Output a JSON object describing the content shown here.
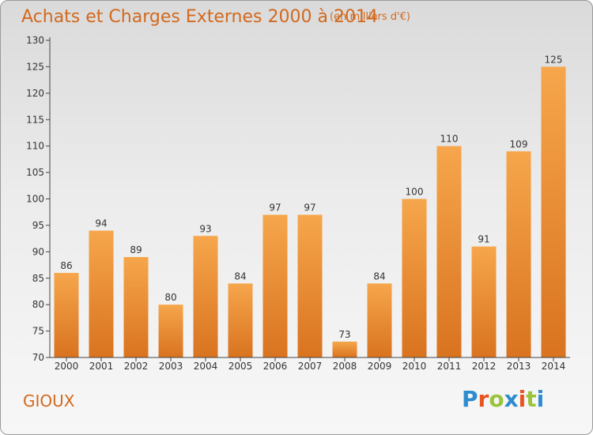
{
  "header": {
    "title": "Achats et Charges Externes 2000 à 2014",
    "units": "(en milliers d'€)"
  },
  "footer": {
    "commune": "GIOUX",
    "logo_text": "Proxiti",
    "logo_colors": [
      "#2e8bd0",
      "#e8531f",
      "#9ac43a",
      "#2e8bd0",
      "#e8531f",
      "#9ac43a",
      "#2e8bd0"
    ]
  },
  "colors": {
    "bar_light": "#f6a64c",
    "bar_dark": "#d9731f",
    "title": "#d2691e",
    "axis": "#444444"
  },
  "chart_data": {
    "type": "bar",
    "title": "Achats et Charges Externes 2000 à 2014",
    "subtitle": "(en milliers d'€)",
    "xlabel": "",
    "ylabel": "",
    "categories": [
      "2000",
      "2001",
      "2002",
      "2003",
      "2004",
      "2005",
      "2006",
      "2007",
      "2008",
      "2009",
      "2010",
      "2011",
      "2012",
      "2013",
      "2014"
    ],
    "values": [
      86,
      94,
      89,
      80,
      93,
      84,
      97,
      97,
      73,
      84,
      100,
      110,
      91,
      109,
      125
    ],
    "ylim": [
      70,
      130
    ],
    "yticks": [
      70,
      75,
      80,
      85,
      90,
      95,
      100,
      105,
      110,
      115,
      120,
      125,
      130
    ],
    "grid": false,
    "legend": "none",
    "data_labels": true
  }
}
